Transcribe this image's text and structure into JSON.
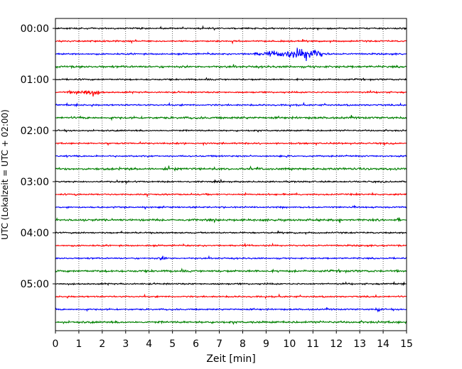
{
  "chart_data": {
    "type": "line",
    "title": "",
    "xlabel": "Zeit  [min]",
    "ylabel": "UTC (Lokalzeit = UTC + 02:00)",
    "xlim": [
      0,
      15
    ],
    "x_ticks": [
      0,
      1,
      2,
      3,
      4,
      5,
      6,
      7,
      8,
      9,
      10,
      11,
      12,
      13,
      14,
      15
    ],
    "x_tick_labels": [
      "0",
      "1",
      "2",
      "3",
      "4",
      "5",
      "6",
      "7",
      "8",
      "9",
      "10",
      "11",
      "12",
      "13",
      "14",
      "15"
    ],
    "y_ticks": [
      {
        "label": "00:00",
        "trace": 0
      },
      {
        "label": "01:00",
        "trace": 4
      },
      {
        "label": "02:00",
        "trace": 8
      },
      {
        "label": "03:00",
        "trace": 12
      },
      {
        "label": "04:00",
        "trace": 16
      },
      {
        "label": "05:00",
        "trace": 20
      }
    ],
    "grid": "vertical dotted",
    "trace_colors": [
      "#000000",
      "#ff0000",
      "#0000ff",
      "#008000"
    ],
    "trace_count": 24,
    "minutes_per_trace": 15,
    "events": [
      {
        "trace": 2,
        "start_min": 7.8,
        "peak_min": 10.9,
        "end_min": 11.8,
        "amplitude": "large"
      },
      {
        "trace": 5,
        "start_min": 0.2,
        "peak_min": 1.4,
        "end_min": 2.3,
        "amplitude": "medium"
      },
      {
        "trace": 18,
        "start_min": 4.3,
        "peak_min": 4.6,
        "end_min": 4.9,
        "amplitude": "small"
      },
      {
        "trace": 22,
        "start_min": 13.6,
        "peak_min": 13.8,
        "end_min": 14.0,
        "amplitude": "small"
      }
    ]
  }
}
